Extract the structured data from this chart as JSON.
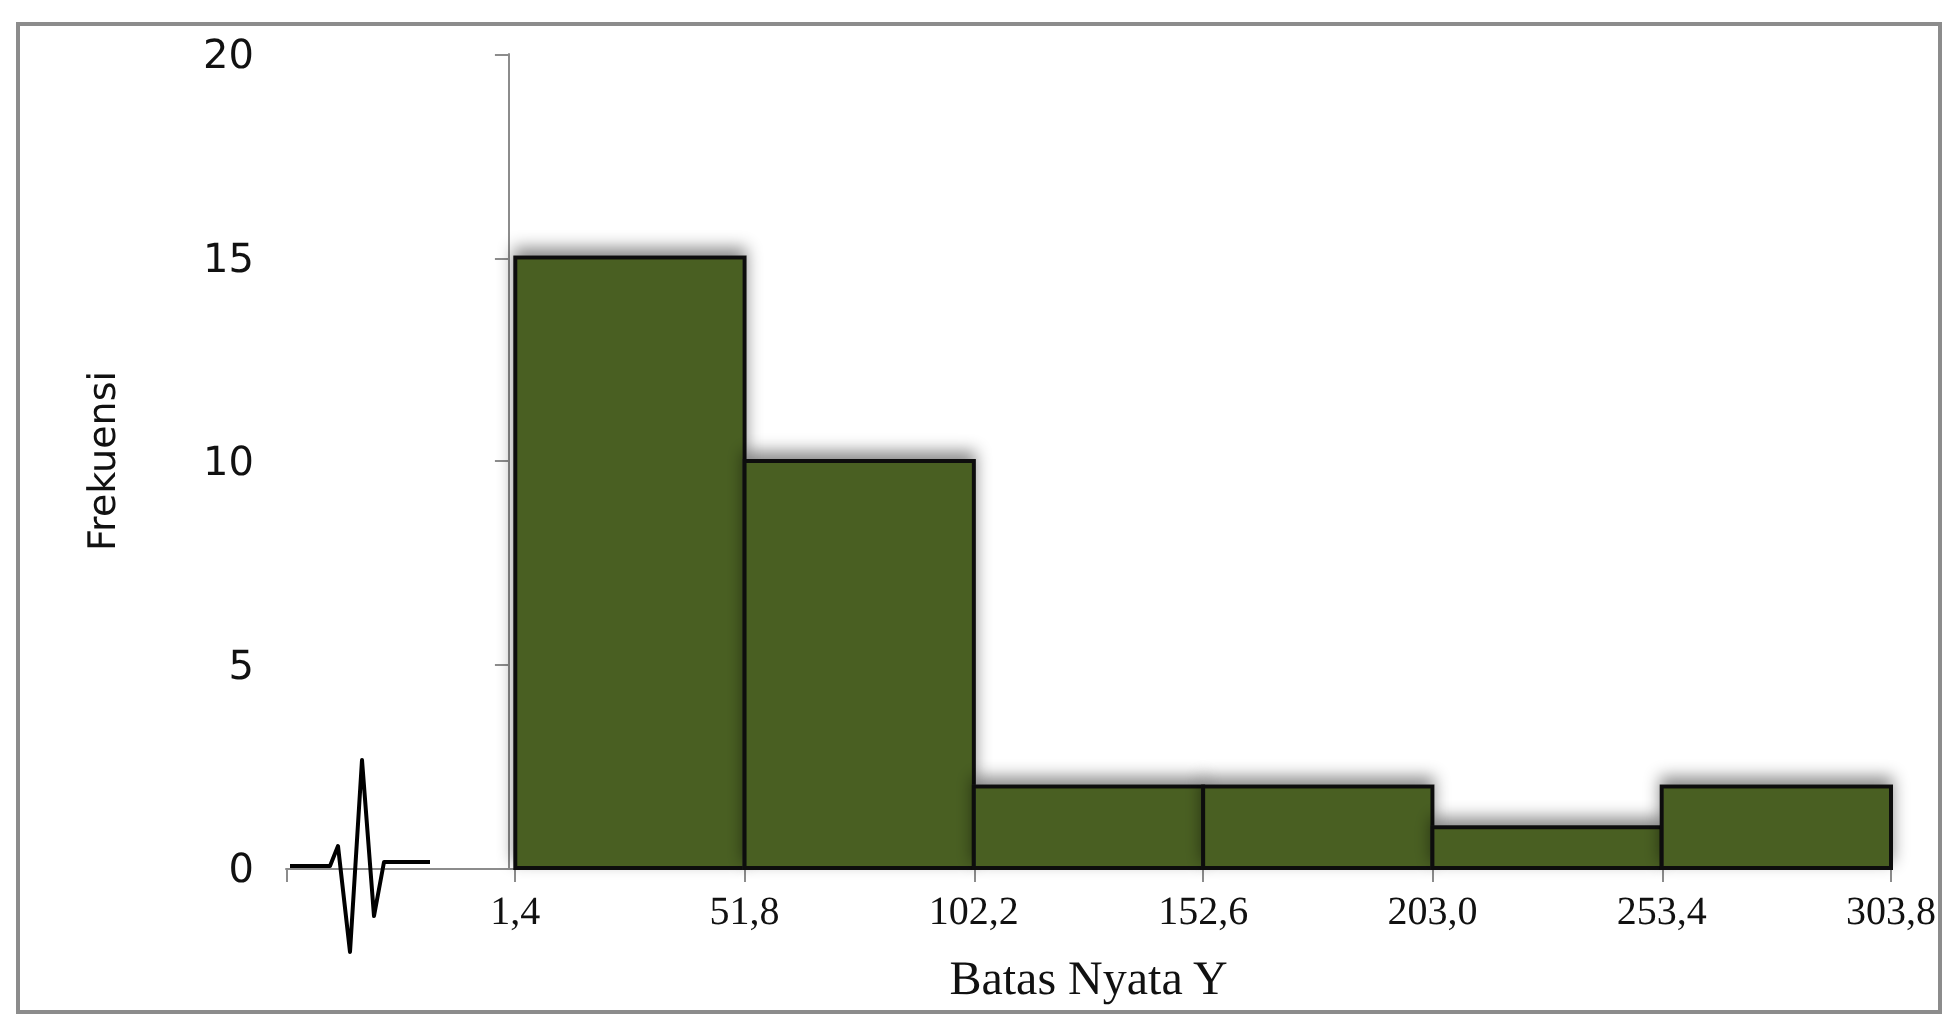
{
  "chart_data": {
    "type": "histogram",
    "xlabel": "Batas Nyata Y",
    "ylabel": "Frekuensi",
    "bins": [
      1.4,
      51.8,
      102.2,
      152.6,
      203.0,
      253.4,
      303.8
    ],
    "values": [
      15,
      10,
      2,
      2,
      1,
      2
    ],
    "color": "#4a5e22",
    "xlim": [
      -49,
      303.8
    ],
    "xticks": [
      {
        "value": -49,
        "label": null
      },
      {
        "value": 1.4,
        "label": "1,4"
      },
      {
        "value": 51.8,
        "label": "51,8"
      },
      {
        "value": 102.2,
        "label": "102,2"
      },
      {
        "value": 152.6,
        "label": "152,6"
      },
      {
        "value": 203.0,
        "label": "203,0"
      },
      {
        "value": 253.4,
        "label": "253,4"
      },
      {
        "value": 303.8,
        "label": "303,8"
      }
    ],
    "ylim": [
      0,
      20
    ],
    "yticks": [
      0,
      5,
      10,
      15,
      20
    ],
    "grid": false
  }
}
